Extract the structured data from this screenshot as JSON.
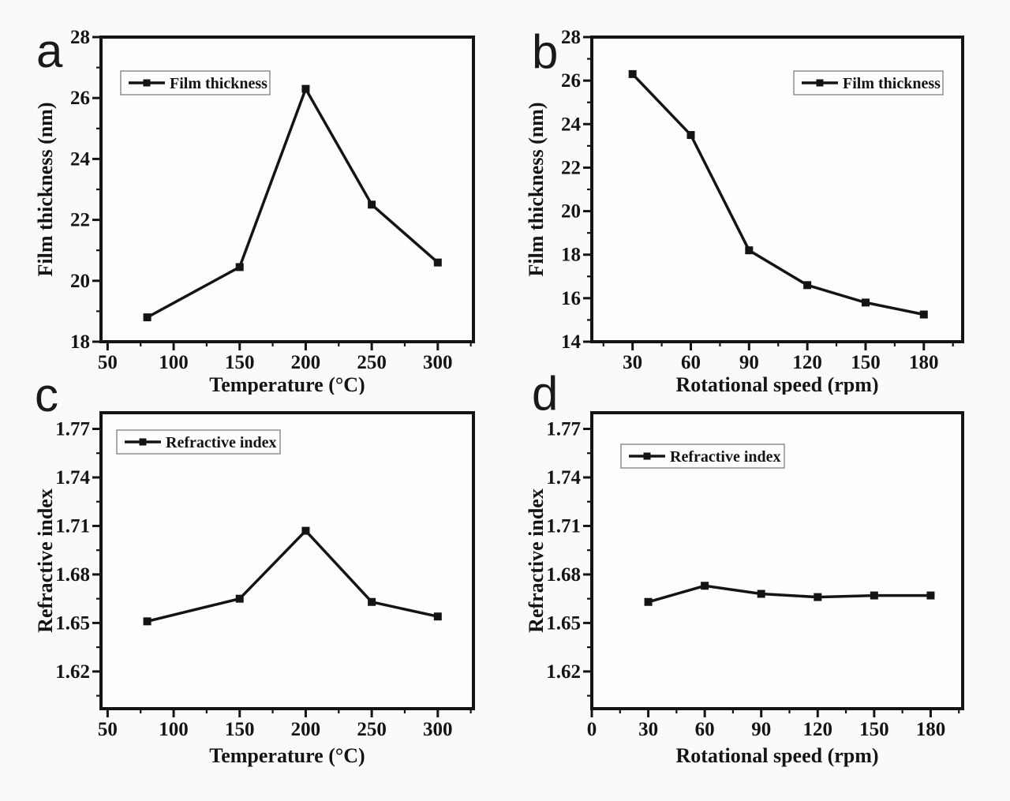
{
  "page": {
    "background": "#fafafa",
    "plot_fill": "#fdfdfd",
    "ink": "#141414",
    "legend_border": "#8f8f8f"
  },
  "chart_data": [
    {
      "panel_letter": "a",
      "type": "line",
      "xlabel": "Temperature (°C)",
      "ylabel": "Film thickness (nm)",
      "legend": {
        "label": "Film thickness",
        "position": "top-left",
        "offset": [
          25,
          43
        ]
      },
      "xlim": [
        45,
        327
      ],
      "ylim": [
        18,
        28
      ],
      "xticks": [
        50,
        100,
        150,
        200,
        250,
        300
      ],
      "xtick_labels": [
        "50",
        "100",
        "150",
        "200",
        "250",
        "300"
      ],
      "xminor": [
        75,
        125,
        175,
        225,
        275,
        325
      ],
      "yticks": [
        18,
        20,
        22,
        24,
        26,
        28
      ],
      "ytick_labels": [
        "18",
        "20",
        "22",
        "24",
        "26",
        "28"
      ],
      "yminor": [
        19,
        21,
        23,
        25,
        27
      ],
      "grid": false,
      "marker": "square",
      "series": [
        {
          "name": "Film thickness",
          "x": [
            80,
            150,
            200,
            250,
            300
          ],
          "y": [
            18.8,
            20.45,
            26.3,
            22.5,
            20.6
          ]
        }
      ]
    },
    {
      "panel_letter": "b",
      "type": "line",
      "xlabel": "Rotational speed (rpm)",
      "ylabel": "Film thickness (nm)",
      "legend": {
        "label": "Film thickness",
        "position": "top-right",
        "offset": [
          25,
          43
        ]
      },
      "xlim": [
        9,
        200
      ],
      "ylim": [
        14,
        28
      ],
      "xticks": [
        30,
        60,
        90,
        120,
        150,
        180
      ],
      "xtick_labels": [
        "30",
        "60",
        "90",
        "120",
        "150",
        "180"
      ],
      "xminor": [
        15,
        45,
        75,
        105,
        135,
        165,
        195
      ],
      "yticks": [
        14,
        16,
        18,
        20,
        22,
        24,
        26,
        28
      ],
      "ytick_labels": [
        "14",
        "16",
        "18",
        "20",
        "22",
        "24",
        "26",
        "28"
      ],
      "yminor": [
        15,
        17,
        19,
        21,
        23,
        25,
        27
      ],
      "grid": false,
      "marker": "square",
      "series": [
        {
          "name": "Film thickness",
          "x": [
            30,
            60,
            90,
            120,
            150,
            180
          ],
          "y": [
            26.3,
            23.5,
            18.2,
            16.6,
            15.8,
            15.25
          ]
        }
      ]
    },
    {
      "panel_letter": "c",
      "type": "line",
      "xlabel": "Temperature (°C)",
      "ylabel": "Refractive index",
      "legend": {
        "label": "Refractive index",
        "position": "top-left",
        "offset": [
          20,
          22
        ]
      },
      "xlim": [
        45,
        327
      ],
      "ylim": [
        1.597,
        1.78
      ],
      "xticks": [
        50,
        100,
        150,
        200,
        250,
        300
      ],
      "xtick_labels": [
        "50",
        "100",
        "150",
        "200",
        "250",
        "300"
      ],
      "xminor": [
        75,
        125,
        175,
        225,
        275,
        325
      ],
      "yticks": [
        1.62,
        1.65,
        1.68,
        1.71,
        1.74,
        1.77
      ],
      "ytick_labels": [
        "1.62",
        "1.65",
        "1.68",
        "1.71",
        "1.74",
        "1.77"
      ],
      "yminor": [
        1.605,
        1.635,
        1.665,
        1.695,
        1.725,
        1.755
      ],
      "grid": false,
      "marker": "square",
      "series": [
        {
          "name": "Refractive index",
          "x": [
            80,
            150,
            200,
            250,
            300
          ],
          "y": [
            1.651,
            1.665,
            1.707,
            1.663,
            1.654
          ]
        }
      ]
    },
    {
      "panel_letter": "d",
      "type": "line",
      "xlabel": "Rotational speed (rpm)",
      "ylabel": "Refractive index",
      "legend": {
        "label": "Refractive index",
        "position": "top-left",
        "offset": [
          37,
          40
        ]
      },
      "xlim": [
        0,
        197
      ],
      "ylim": [
        1.597,
        1.78
      ],
      "xticks": [
        0,
        30,
        60,
        90,
        120,
        150,
        180
      ],
      "xtick_labels": [
        "0",
        "30",
        "60",
        "90",
        "120",
        "150",
        "180"
      ],
      "xminor": [
        15,
        45,
        75,
        105,
        135,
        165,
        195
      ],
      "yticks": [
        1.62,
        1.65,
        1.68,
        1.71,
        1.74,
        1.77
      ],
      "ytick_labels": [
        "1.62",
        "1.65",
        "1.68",
        "1.71",
        "1.74",
        "1.77"
      ],
      "yminor": [
        1.605,
        1.635,
        1.665,
        1.695,
        1.725,
        1.755
      ],
      "grid": false,
      "marker": "square",
      "series": [
        {
          "name": "Refractive index",
          "x": [
            30,
            60,
            90,
            120,
            150,
            180
          ],
          "y": [
            1.663,
            1.673,
            1.668,
            1.666,
            1.667,
            1.667
          ]
        }
      ]
    }
  ]
}
